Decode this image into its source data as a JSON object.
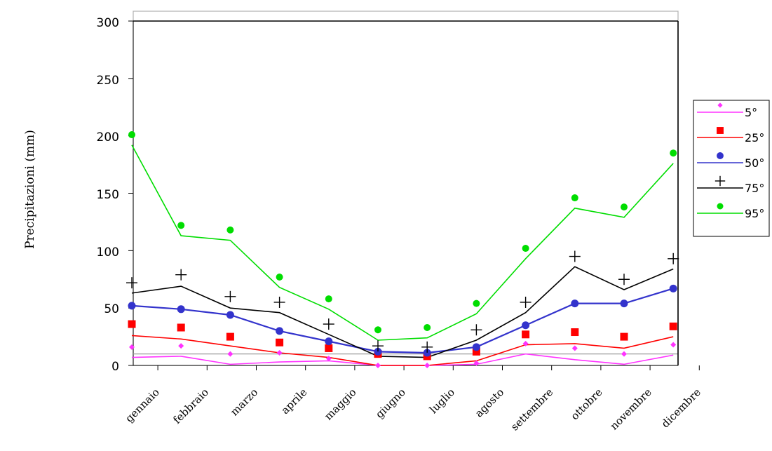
{
  "chart_data": {
    "type": "line",
    "title": "",
    "xlabel": "",
    "ylabel": "Precipitazioni (mm)",
    "ylim": [
      0,
      300
    ],
    "yticks": [
      "0",
      "50",
      "100",
      "150",
      "200",
      "250",
      "300"
    ],
    "categories": [
      "gennaio",
      "febbraio",
      "marzo",
      "aprile",
      "maggio",
      "giugno",
      "luglio",
      "agosto",
      "settembre",
      "ottobre",
      "novembre",
      "dicembre"
    ],
    "legend_position": "right",
    "series": [
      {
        "name": "5°",
        "color": "#ff33ff",
        "marker": "diamond",
        "points": [
          16,
          17,
          10,
          11,
          6,
          0,
          0,
          2,
          19,
          15,
          10,
          18
        ],
        "line": [
          7,
          8,
          1,
          3,
          4,
          0,
          0,
          1,
          10,
          5,
          1,
          9
        ]
      },
      {
        "name": "25°",
        "color": "#ff0000",
        "marker": "square",
        "points": [
          36,
          33,
          25,
          20,
          15,
          10,
          8,
          12,
          27,
          29,
          25,
          34
        ],
        "line": [
          26,
          23,
          17,
          11,
          7,
          0,
          0,
          4,
          18,
          19,
          15,
          25
        ]
      },
      {
        "name": "50°",
        "color": "#3333cc",
        "marker": "circle",
        "points": [
          52,
          49,
          44,
          30,
          21,
          12,
          11,
          16,
          35,
          54,
          54,
          67
        ],
        "line": [
          52,
          49,
          44,
          30,
          21,
          12,
          11,
          16,
          35,
          54,
          54,
          67
        ]
      },
      {
        "name": "75°",
        "color": "#000000",
        "marker": "plus",
        "points": [
          72,
          79,
          60,
          55,
          36,
          17,
          16,
          31,
          55,
          95,
          75,
          93
        ],
        "line": [
          63,
          69,
          50,
          46,
          27,
          8,
          7,
          22,
          46,
          86,
          66,
          84
        ]
      },
      {
        "name": "95°",
        "color": "#00dd00",
        "marker": "dot",
        "points": [
          201,
          122,
          118,
          77,
          58,
          31,
          33,
          54,
          102,
          146,
          138,
          185
        ],
        "line": [
          192,
          113,
          109,
          68,
          49,
          22,
          24,
          45,
          93,
          137,
          129,
          176
        ]
      }
    ],
    "reference_lines": [
      10,
      300
    ]
  }
}
